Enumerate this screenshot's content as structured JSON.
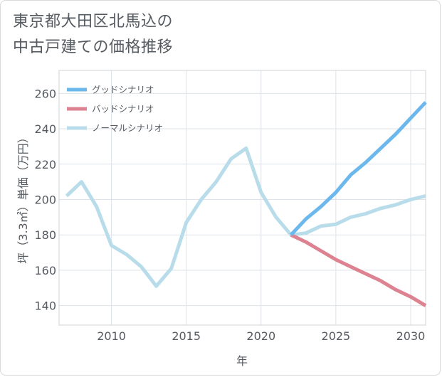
{
  "chart_title": {
    "line1": "東京都大田区北馬込の",
    "line2": "中古戸建ての価格推移"
  },
  "chart_data": {
    "type": "line",
    "title": "東京都大田区北馬込の中古戸建ての価格推移",
    "xlabel": "年",
    "ylabel": "坪（3.3㎡）単価（万円）",
    "xlim": [
      2006.5,
      2031
    ],
    "ylim": [
      129,
      273
    ],
    "x_ticks": [
      2010,
      2015,
      2020,
      2025,
      2030
    ],
    "y_ticks": [
      140,
      160,
      180,
      200,
      220,
      240,
      260
    ],
    "legend_position": "top-left",
    "grid": true,
    "series": [
      {
        "name": "グッドシナリオ",
        "color": "#6cb8ec",
        "x": [
          2022,
          2023,
          2024,
          2025,
          2026,
          2027,
          2028,
          2029,
          2030,
          2031
        ],
        "values": [
          180,
          189,
          196,
          204,
          214,
          221,
          229,
          237,
          246,
          255
        ]
      },
      {
        "name": "バッドシナリオ",
        "color": "#dc8290",
        "x": [
          2022,
          2023,
          2024,
          2025,
          2026,
          2027,
          2028,
          2029,
          2030,
          2031
        ],
        "values": [
          180,
          176,
          171,
          166,
          162,
          158,
          154,
          149,
          145,
          140
        ]
      },
      {
        "name": "ノーマルシナリオ",
        "color": "#b8dcea",
        "x": [
          2007,
          2008,
          2009,
          2010,
          2011,
          2012,
          2013,
          2014,
          2015,
          2016,
          2017,
          2018,
          2019,
          2020,
          2021,
          2022,
          2023,
          2024,
          2025,
          2026,
          2027,
          2028,
          2029,
          2030,
          2031
        ],
        "values": [
          202,
          210,
          196,
          174,
          169,
          162,
          151,
          161,
          187,
          200,
          210,
          223,
          229,
          204,
          190,
          180,
          181,
          185,
          186,
          190,
          192,
          195,
          197,
          200,
          202
        ]
      }
    ]
  }
}
